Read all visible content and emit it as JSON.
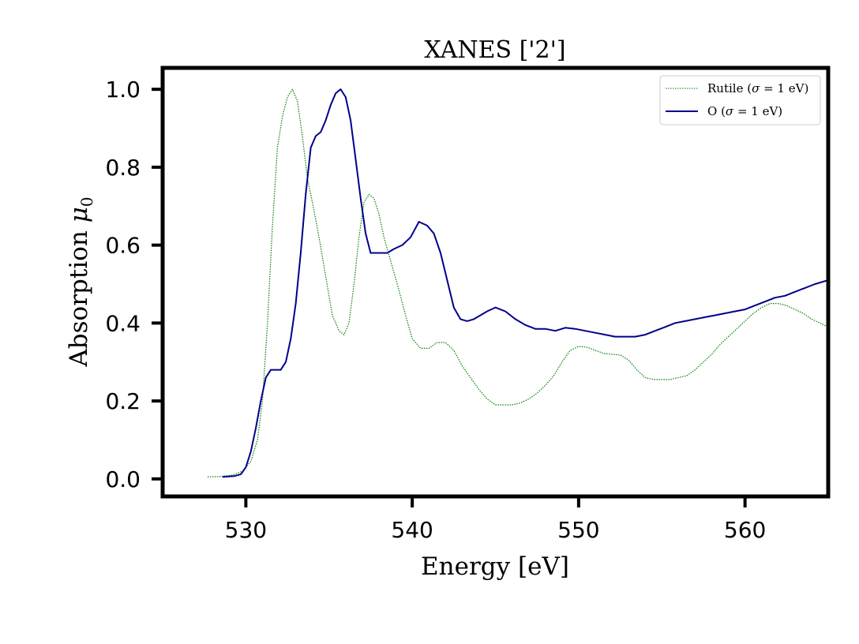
{
  "chart_data": {
    "type": "line",
    "title": "XANES ['2']",
    "xlabel": "Energy [eV]",
    "ylabel_text": "Absorption ",
    "ylabel_symbol": "μ",
    "ylabel_subscript": "0",
    "xlim": [
      525,
      565
    ],
    "ylim": [
      -0.045,
      1.055
    ],
    "xticks": [
      530,
      540,
      550,
      560
    ],
    "xtick_labels": [
      "530",
      "540",
      "550",
      "560"
    ],
    "yticks": [
      0.0,
      0.2,
      0.4,
      0.6,
      0.8,
      1.0
    ],
    "ytick_labels": [
      "0.0",
      "0.2",
      "0.4",
      "0.6",
      "0.8",
      "1.0"
    ],
    "grid": false,
    "legend_position": "top-right",
    "series": [
      {
        "name": "Rutile (σ = 1 eV)",
        "legend_prefix": "Rutile (",
        "legend_symbol": "σ",
        "legend_suffix": " = 1 eV)",
        "color": "#008000",
        "style": "dotted",
        "x": [
          527.7,
          528.5,
          529.2,
          529.8,
          530.3,
          530.7,
          531.0,
          531.3,
          531.6,
          531.9,
          532.2,
          532.5,
          532.8,
          533.1,
          533.4,
          533.7,
          534.0,
          534.4,
          534.8,
          535.2,
          535.6,
          535.9,
          536.2,
          536.5,
          536.8,
          537.1,
          537.4,
          537.7,
          538.0,
          538.3,
          538.7,
          539.1,
          539.6,
          540.0,
          540.5,
          541.0,
          541.5,
          542.0,
          542.5,
          543.0,
          543.5,
          544.0,
          544.5,
          545.0,
          545.5,
          546.0,
          546.5,
          547.0,
          547.5,
          548.0,
          548.5,
          549.0,
          549.5,
          550.0,
          550.5,
          551.0,
          551.5,
          552.0,
          552.5,
          553.0,
          553.5,
          554.0,
          554.5,
          555.0,
          555.5,
          556.0,
          556.5,
          557.0,
          557.5,
          558.0,
          558.5,
          559.0,
          559.5,
          560.0,
          560.5,
          561.0,
          561.5,
          562.0,
          562.5,
          563.0,
          563.5,
          564.0,
          564.5,
          565.0
        ],
        "y": [
          0.005,
          0.006,
          0.01,
          0.02,
          0.045,
          0.1,
          0.2,
          0.4,
          0.65,
          0.85,
          0.93,
          0.98,
          1.0,
          0.97,
          0.88,
          0.77,
          0.71,
          0.62,
          0.52,
          0.42,
          0.38,
          0.37,
          0.4,
          0.5,
          0.62,
          0.71,
          0.73,
          0.72,
          0.68,
          0.62,
          0.56,
          0.5,
          0.42,
          0.36,
          0.335,
          0.335,
          0.35,
          0.35,
          0.33,
          0.29,
          0.26,
          0.23,
          0.205,
          0.19,
          0.19,
          0.19,
          0.195,
          0.205,
          0.22,
          0.24,
          0.265,
          0.3,
          0.33,
          0.34,
          0.338,
          0.33,
          0.322,
          0.32,
          0.318,
          0.305,
          0.28,
          0.26,
          0.255,
          0.255,
          0.255,
          0.26,
          0.265,
          0.28,
          0.3,
          0.32,
          0.345,
          0.365,
          0.385,
          0.405,
          0.425,
          0.44,
          0.45,
          0.45,
          0.445,
          0.435,
          0.425,
          0.41,
          0.4,
          0.39
        ]
      },
      {
        "name": "O (σ = 1 eV)",
        "legend_prefix": "O (",
        "legend_symbol": "σ",
        "legend_suffix": " = 1 eV)",
        "color": "#00008b",
        "style": "solid",
        "x": [
          528.6,
          529.3,
          529.7,
          530.0,
          530.3,
          530.6,
          530.9,
          531.2,
          531.5,
          531.8,
          532.1,
          532.4,
          532.7,
          533.0,
          533.3,
          533.6,
          533.9,
          534.2,
          534.5,
          534.8,
          535.1,
          535.4,
          535.7,
          536.0,
          536.3,
          536.6,
          536.9,
          537.2,
          537.5,
          537.8,
          538.1,
          538.5,
          538.9,
          539.4,
          539.9,
          540.4,
          540.9,
          541.3,
          541.7,
          542.1,
          542.5,
          542.9,
          543.3,
          543.7,
          544.1,
          544.5,
          545.0,
          545.6,
          546.2,
          546.8,
          547.4,
          548.0,
          548.6,
          549.2,
          549.8,
          550.4,
          551.0,
          551.6,
          552.2,
          552.8,
          553.4,
          554.0,
          554.6,
          555.2,
          555.8,
          556.4,
          557.0,
          557.6,
          558.2,
          558.8,
          559.4,
          560.0,
          560.6,
          561.2,
          561.8,
          562.4,
          563.0,
          563.6,
          564.2,
          565.0
        ],
        "y": [
          0.005,
          0.007,
          0.012,
          0.03,
          0.07,
          0.13,
          0.2,
          0.26,
          0.28,
          0.28,
          0.28,
          0.3,
          0.36,
          0.45,
          0.58,
          0.73,
          0.85,
          0.88,
          0.89,
          0.92,
          0.96,
          0.99,
          1.0,
          0.98,
          0.92,
          0.82,
          0.72,
          0.63,
          0.58,
          0.58,
          0.58,
          0.58,
          0.59,
          0.6,
          0.62,
          0.66,
          0.65,
          0.63,
          0.58,
          0.51,
          0.44,
          0.41,
          0.405,
          0.41,
          0.42,
          0.43,
          0.44,
          0.43,
          0.41,
          0.395,
          0.385,
          0.385,
          0.38,
          0.388,
          0.385,
          0.38,
          0.375,
          0.37,
          0.365,
          0.365,
          0.365,
          0.37,
          0.38,
          0.39,
          0.4,
          0.405,
          0.41,
          0.415,
          0.42,
          0.425,
          0.43,
          0.435,
          0.445,
          0.455,
          0.465,
          0.47,
          0.48,
          0.49,
          0.5,
          0.51
        ]
      }
    ]
  }
}
